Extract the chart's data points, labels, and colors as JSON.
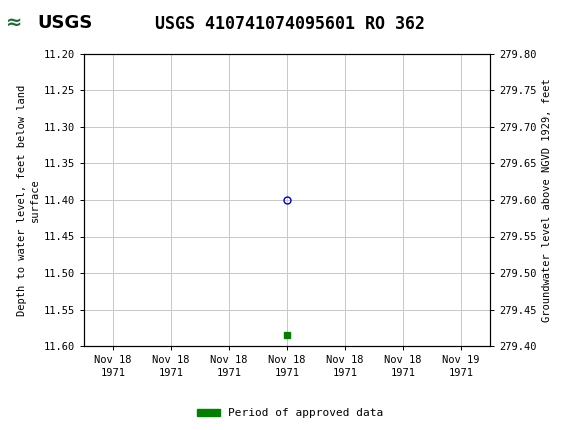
{
  "title": "USGS 410741074095601 RO 362",
  "ylabel_left": "Depth to water level, feet below land\nsurface",
  "ylabel_right": "Groundwater level above NGVD 1929, feet",
  "ylim_left": [
    11.6,
    11.2
  ],
  "ylim_right": [
    279.4,
    279.8
  ],
  "yticks_left": [
    11.2,
    11.25,
    11.3,
    11.35,
    11.4,
    11.45,
    11.5,
    11.55,
    11.6
  ],
  "yticks_right": [
    279.8,
    279.75,
    279.7,
    279.65,
    279.6,
    279.55,
    279.5,
    279.45,
    279.4
  ],
  "xtick_labels": [
    "Nov 18\n1971",
    "Nov 18\n1971",
    "Nov 18\n1971",
    "Nov 18\n1971",
    "Nov 18\n1971",
    "Nov 18\n1971",
    "Nov 19\n1971"
  ],
  "data_x": [
    3
  ],
  "data_y_left": [
    11.4
  ],
  "marker_color": "#0000cc",
  "marker_facecolor": "none",
  "marker_size": 5,
  "green_square_x": [
    3
  ],
  "green_square_y_left": [
    11.585
  ],
  "green_square_color": "#008000",
  "green_square_size": 4,
  "grid_color": "#c8c8c8",
  "bg_color": "#ffffff",
  "header_bg": "#1a6b35",
  "legend_label": "Period of approved data",
  "legend_color": "#008000",
  "title_fontsize": 12,
  "tick_fontsize": 7.5,
  "num_xticks": 7
}
